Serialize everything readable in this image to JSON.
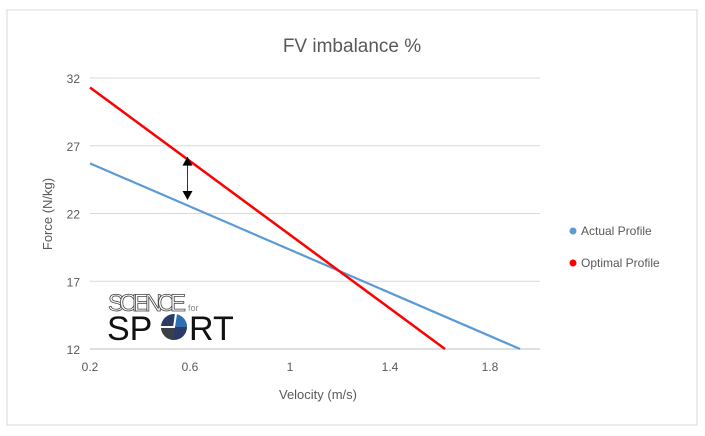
{
  "chart_data": {
    "type": "line",
    "title": "FV imbalance %",
    "xlabel": "Velocity (m/s)",
    "ylabel": "Force (N/kg)",
    "xlim": [
      0.2,
      2.0
    ],
    "ylim": [
      12,
      32
    ],
    "xticks": [
      "0.2",
      "0.6",
      "1",
      "1.4",
      "1.8"
    ],
    "yticks": [
      "12",
      "17",
      "22",
      "27",
      "32"
    ],
    "grid": "horizontal",
    "legend_position": "right",
    "series": [
      {
        "name": "Actual Profile",
        "color": "#5b9bd5",
        "x": [
          0.2,
          1.92
        ],
        "y": [
          25.7,
          12
        ]
      },
      {
        "name": "Optimal Profile",
        "color": "#ff0000",
        "x": [
          0.2,
          1.62
        ],
        "y": [
          31.3,
          12
        ]
      }
    ],
    "annotation": {
      "type": "double-arrow",
      "x": 0.59,
      "y": [
        26.2,
        23.0
      ],
      "color": "#000000"
    }
  },
  "logo": {
    "line1": "SCIENCE",
    "small": "for",
    "line2a": "SP",
    "line2b": "RT"
  }
}
